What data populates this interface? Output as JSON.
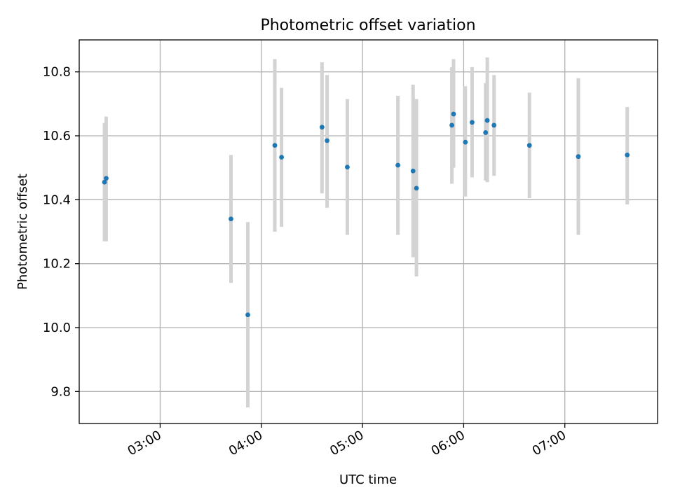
{
  "chart_data": {
    "type": "scatter",
    "title": "Photometric offset variation",
    "xlabel": "UTC time",
    "ylabel": "Photometric offset",
    "x_ticks": [
      "03:00",
      "04:00",
      "05:00",
      "06:00",
      "07:00"
    ],
    "y_ticks": [
      "9.8",
      "10.0",
      "10.2",
      "10.4",
      "10.6",
      "10.8"
    ],
    "xlim": [
      "02:12",
      "07:55"
    ],
    "ylim": [
      9.7,
      10.9
    ],
    "grid": true,
    "colors": {
      "point": "#1f77b4",
      "errorbar": "#d3d3d3"
    },
    "points": [
      {
        "x": "02:27",
        "y": 10.455,
        "err_lo": 10.27,
        "err_hi": 10.64
      },
      {
        "x": "02:28",
        "y": 10.467,
        "err_lo": 10.27,
        "err_hi": 10.66
      },
      {
        "x": "03:42",
        "y": 10.34,
        "err_lo": 10.14,
        "err_hi": 10.54
      },
      {
        "x": "03:52",
        "y": 10.04,
        "err_lo": 9.75,
        "err_hi": 10.33
      },
      {
        "x": "04:08",
        "y": 10.57,
        "err_lo": 10.3,
        "err_hi": 10.84
      },
      {
        "x": "04:12",
        "y": 10.533,
        "err_lo": 10.315,
        "err_hi": 10.75
      },
      {
        "x": "04:36",
        "y": 10.627,
        "err_lo": 10.42,
        "err_hi": 10.83
      },
      {
        "x": "04:39",
        "y": 10.585,
        "err_lo": 10.375,
        "err_hi": 10.79
      },
      {
        "x": "04:51",
        "y": 10.502,
        "err_lo": 10.29,
        "err_hi": 10.715
      },
      {
        "x": "05:21",
        "y": 10.508,
        "err_lo": 10.29,
        "err_hi": 10.725
      },
      {
        "x": "05:30",
        "y": 10.49,
        "err_lo": 10.22,
        "err_hi": 10.76
      },
      {
        "x": "05:32",
        "y": 10.436,
        "err_lo": 10.16,
        "err_hi": 10.715
      },
      {
        "x": "05:53",
        "y": 10.633,
        "err_lo": 10.45,
        "err_hi": 10.815
      },
      {
        "x": "05:54",
        "y": 10.668,
        "err_lo": 10.5,
        "err_hi": 10.84
      },
      {
        "x": "06:01",
        "y": 10.58,
        "err_lo": 10.41,
        "err_hi": 10.755
      },
      {
        "x": "06:05",
        "y": 10.642,
        "err_lo": 10.47,
        "err_hi": 10.815
      },
      {
        "x": "06:13",
        "y": 10.61,
        "err_lo": 10.46,
        "err_hi": 10.765
      },
      {
        "x": "06:14",
        "y": 10.648,
        "err_lo": 10.455,
        "err_hi": 10.845
      },
      {
        "x": "06:18",
        "y": 10.633,
        "err_lo": 10.475,
        "err_hi": 10.79
      },
      {
        "x": "06:39",
        "y": 10.57,
        "err_lo": 10.405,
        "err_hi": 10.735
      },
      {
        "x": "07:08",
        "y": 10.535,
        "err_lo": 10.29,
        "err_hi": 10.78
      },
      {
        "x": "07:37",
        "y": 10.54,
        "err_lo": 10.385,
        "err_hi": 10.69
      }
    ]
  }
}
